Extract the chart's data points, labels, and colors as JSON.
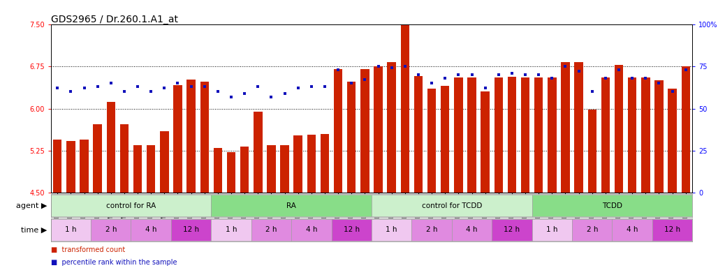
{
  "title": "GDS2965 / Dr.260.1.A1_at",
  "samples": [
    "GSM228874",
    "GSM228875",
    "GSM228876",
    "GSM228880",
    "GSM228881",
    "GSM228882",
    "GSM228886",
    "GSM228887",
    "GSM228888",
    "GSM228892",
    "GSM228893",
    "GSM228894",
    "GSM228871",
    "GSM228872",
    "GSM228873",
    "GSM228877",
    "GSM228878",
    "GSM228879",
    "GSM228883",
    "GSM228884",
    "GSM228885",
    "GSM228889",
    "GSM228890",
    "GSM228891",
    "GSM228898",
    "GSM228899",
    "GSM228900",
    "GSM228905",
    "GSM228906",
    "GSM228907",
    "GSM228911",
    "GSM228912",
    "GSM228913",
    "GSM228917",
    "GSM228918",
    "GSM228919",
    "GSM228895",
    "GSM228896",
    "GSM228897",
    "GSM228901",
    "GSM228903",
    "GSM228904",
    "GSM228908",
    "GSM228909",
    "GSM228910",
    "GSM228914",
    "GSM228915",
    "GSM228916"
  ],
  "bar_values": [
    5.45,
    5.42,
    5.45,
    5.72,
    6.12,
    5.72,
    5.35,
    5.35,
    5.6,
    6.42,
    6.52,
    6.48,
    5.3,
    5.22,
    5.32,
    5.95,
    5.35,
    5.35,
    5.52,
    5.54,
    5.55,
    6.7,
    6.48,
    6.7,
    6.75,
    6.82,
    7.5,
    6.58,
    6.35,
    6.4,
    6.55,
    6.55,
    6.3,
    6.55,
    6.57,
    6.55,
    6.55,
    6.55,
    6.82,
    6.82,
    5.98,
    6.55,
    6.77,
    6.55,
    6.55,
    6.5,
    6.35,
    6.75
  ],
  "dot_values": [
    62,
    60,
    62,
    63,
    65,
    60,
    63,
    60,
    62,
    65,
    63,
    63,
    60,
    57,
    59,
    63,
    57,
    59,
    62,
    63,
    63,
    73,
    65,
    67,
    75,
    74,
    75,
    70,
    65,
    68,
    70,
    70,
    62,
    70,
    71,
    70,
    70,
    68,
    75,
    72,
    60,
    68,
    73,
    68,
    68,
    65,
    60,
    73
  ],
  "ylim_left": [
    4.5,
    7.5
  ],
  "ylim_right": [
    0,
    100
  ],
  "yticks_left": [
    4.5,
    5.25,
    6.0,
    6.75,
    7.5
  ],
  "yticks_right": [
    0,
    25,
    50,
    75,
    100
  ],
  "bar_color": "#cc2200",
  "dot_color": "#1111bb",
  "bar_bottom": 4.5,
  "agent_groups": [
    {
      "label": "control for RA",
      "start": 0,
      "end": 12,
      "color": "#ccf0cc"
    },
    {
      "label": "RA",
      "start": 12,
      "end": 24,
      "color": "#88dd88"
    },
    {
      "label": "control for TCDD",
      "start": 24,
      "end": 36,
      "color": "#ccf0cc"
    },
    {
      "label": "TCDD",
      "start": 36,
      "end": 48,
      "color": "#88dd88"
    }
  ],
  "time_groups": [
    {
      "label": "1 h",
      "start": 0,
      "end": 3,
      "color": "#f0c8f0"
    },
    {
      "label": "2 h",
      "start": 3,
      "end": 6,
      "color": "#e08ae0"
    },
    {
      "label": "4 h",
      "start": 6,
      "end": 9,
      "color": "#e08ae0"
    },
    {
      "label": "12 h",
      "start": 9,
      "end": 12,
      "color": "#cc44cc"
    },
    {
      "label": "1 h",
      "start": 12,
      "end": 15,
      "color": "#f0c8f0"
    },
    {
      "label": "2 h",
      "start": 15,
      "end": 18,
      "color": "#e08ae0"
    },
    {
      "label": "4 h",
      "start": 18,
      "end": 21,
      "color": "#e08ae0"
    },
    {
      "label": "12 h",
      "start": 21,
      "end": 24,
      "color": "#cc44cc"
    },
    {
      "label": "1 h",
      "start": 24,
      "end": 27,
      "color": "#f0c8f0"
    },
    {
      "label": "2 h",
      "start": 27,
      "end": 30,
      "color": "#e08ae0"
    },
    {
      "label": "4 h",
      "start": 30,
      "end": 33,
      "color": "#e08ae0"
    },
    {
      "label": "12 h",
      "start": 33,
      "end": 36,
      "color": "#cc44cc"
    },
    {
      "label": "1 h",
      "start": 36,
      "end": 39,
      "color": "#f0c8f0"
    },
    {
      "label": "2 h",
      "start": 39,
      "end": 42,
      "color": "#e08ae0"
    },
    {
      "label": "4 h",
      "start": 42,
      "end": 45,
      "color": "#e08ae0"
    },
    {
      "label": "12 h",
      "start": 45,
      "end": 48,
      "color": "#cc44cc"
    }
  ],
  "grid_lines": [
    5.25,
    6.0,
    6.75
  ],
  "title_fontsize": 10,
  "tick_fontsize": 5.5,
  "row_label_fontsize": 8,
  "cell_fontsize": 7.5,
  "right_tick_label": [
    "0",
    "25",
    "50",
    "75",
    "100%"
  ],
  "bg_color": "#f0f0f0"
}
